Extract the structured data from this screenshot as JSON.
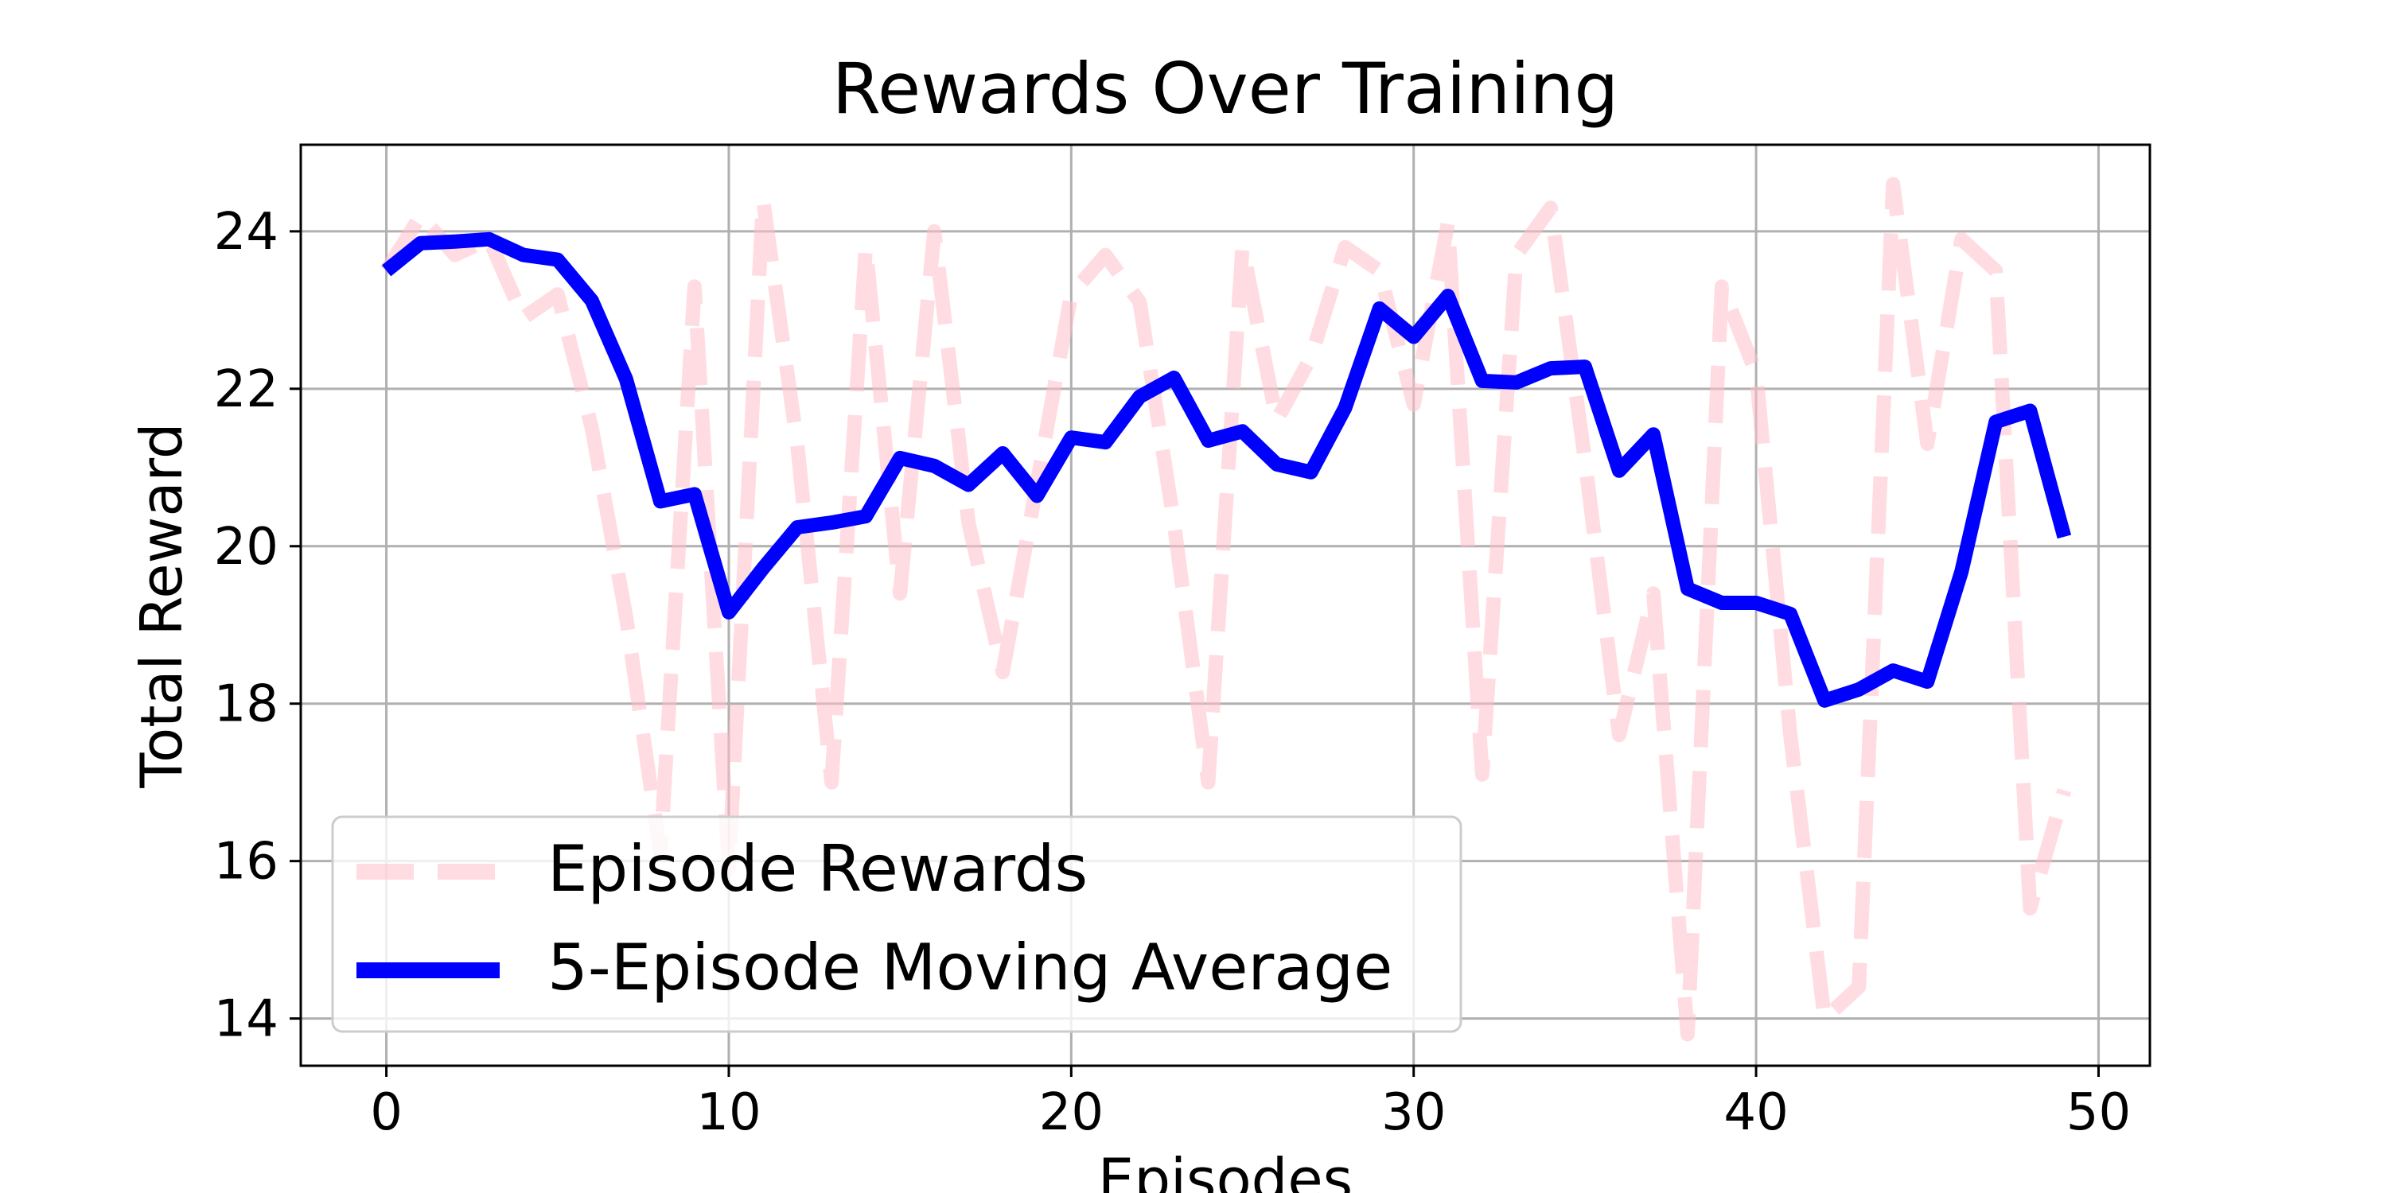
{
  "chart_data": {
    "type": "line",
    "title": "Rewards Over Training",
    "xlabel": "Episodes",
    "ylabel": "Total Reward",
    "xlim": [
      -2.5,
      51.5
    ],
    "ylim": [
      13.4,
      25.1
    ],
    "xticks": [
      0,
      10,
      20,
      30,
      40,
      50
    ],
    "yticks": [
      14,
      16,
      18,
      20,
      22,
      24
    ],
    "grid": true,
    "legend_position": "lower-left",
    "series": [
      {
        "name": "Episode Rewards",
        "style": "dashed",
        "color": "#ffc0cb",
        "x": [
          0,
          1,
          2,
          3,
          4,
          5,
          6,
          7,
          8,
          9,
          10,
          11,
          12,
          13,
          14,
          15,
          16,
          17,
          18,
          19,
          20,
          21,
          22,
          23,
          24,
          25,
          26,
          27,
          28,
          29,
          30,
          31,
          32,
          33,
          34,
          35,
          36,
          37,
          38,
          39,
          40,
          41,
          42,
          43,
          44,
          45,
          46,
          47,
          48,
          49
        ],
        "values": [
          23.5,
          24.2,
          23.7,
          23.9,
          22.9,
          23.2,
          21.5,
          19.1,
          16.1,
          23.3,
          15.9,
          24.4,
          21.3,
          17.0,
          23.8,
          19.4,
          24.0,
          20.3,
          18.4,
          20.8,
          23.2,
          23.7,
          23.1,
          20.3,
          17.0,
          23.8,
          21.6,
          22.4,
          23.8,
          23.5,
          21.8,
          24.1,
          17.1,
          23.7,
          24.3,
          21.1,
          17.6,
          19.4,
          13.8,
          23.3,
          22.2,
          17.6,
          14.0,
          14.4,
          24.6,
          21.3,
          23.9,
          23.5,
          15.4,
          16.9
        ]
      },
      {
        "name": "5-Episode Moving Average",
        "style": "solid",
        "color": "#0000ff",
        "x": [
          0,
          1,
          2,
          3,
          4,
          5,
          6,
          7,
          8,
          9,
          10,
          11,
          12,
          13,
          14,
          15,
          16,
          17,
          18,
          19,
          20,
          21,
          22,
          23,
          24,
          25,
          26,
          27,
          28,
          29,
          30,
          31,
          32,
          33,
          34,
          35,
          36,
          37,
          38,
          39,
          40,
          41,
          42,
          43,
          44,
          45,
          46,
          47,
          48,
          49
        ],
        "values": [
          23.5,
          23.85,
          23.87,
          23.9,
          23.7,
          23.64,
          23.12,
          22.12,
          20.57,
          20.66,
          19.16,
          19.72,
          20.24,
          20.3,
          20.38,
          21.12,
          21.02,
          20.78,
          21.18,
          20.64,
          21.38,
          21.32,
          21.9,
          22.14,
          21.34,
          21.46,
          21.04,
          20.94,
          21.76,
          23.02,
          22.66,
          23.18,
          22.1,
          22.08,
          22.26,
          22.28,
          20.96,
          21.42,
          19.46,
          19.28,
          19.28,
          19.14,
          18.04,
          18.18,
          18.42,
          18.28,
          19.68,
          21.58,
          21.72,
          20.12
        ]
      }
    ]
  }
}
